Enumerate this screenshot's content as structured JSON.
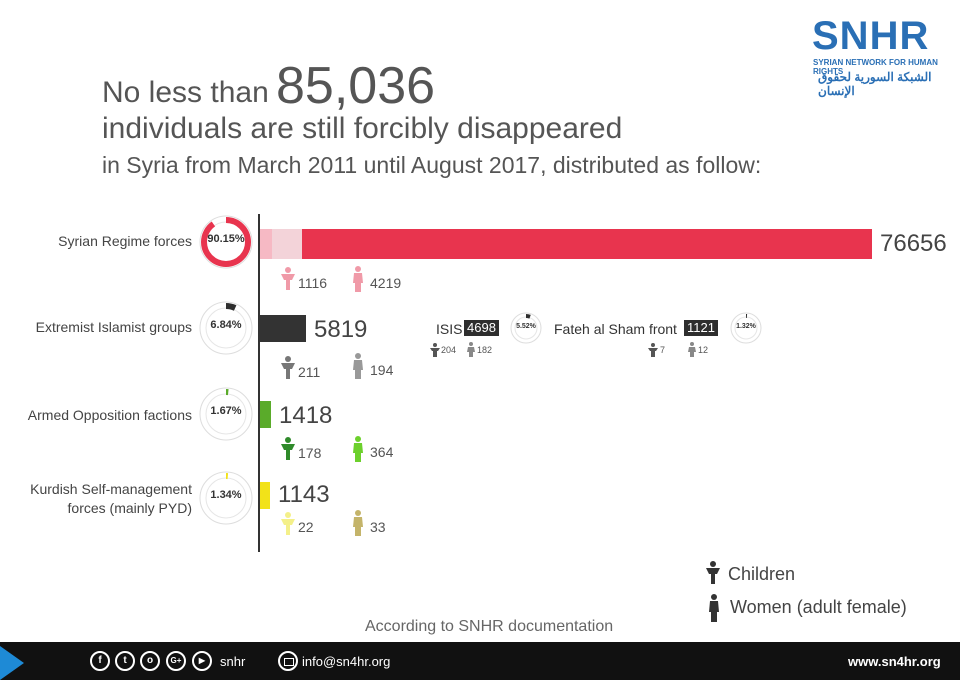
{
  "logo": {
    "name": "SNHR",
    "subtitle": "SYRIAN NETWORK FOR HUMAN RIGHTS",
    "arabic": "الشبكة السورية لحقوق الإنسان"
  },
  "headline": {
    "prefix": "No less than",
    "number": "85,036",
    "line2": "individuals are still forcibly disappeared",
    "line3": "in Syria from March 2011 until August 2017, distributed as follow:"
  },
  "chart_data": {
    "type": "bar",
    "title": "No less than 85,036 individuals are still forcibly disappeared",
    "total": 85036,
    "categories": [
      "Syrian Regime forces",
      "Extremist Islamist groups",
      "Armed Opposition factions",
      "Kurdish Self-management forces (mainly PYD)"
    ],
    "series": [
      {
        "name": "Total",
        "values": [
          76656,
          5819,
          1418,
          1143
        ]
      },
      {
        "name": "Children",
        "values": [
          1116,
          211,
          178,
          22
        ]
      },
      {
        "name": "Women (adult female)",
        "values": [
          4219,
          194,
          364,
          33
        ]
      }
    ],
    "percent_labels": [
      "90.15%",
      "6.84%",
      "1.67%",
      "1.34%"
    ],
    "colors": [
      "#e8344e",
      "#333333",
      "#5aab2a",
      "#f2e219"
    ],
    "subgroups": [
      {
        "name": "ISIS",
        "total": 4698,
        "percent_label": "5.52%",
        "children": 204,
        "women": 182
      },
      {
        "name": "Fateh al Sham front",
        "total": 1121,
        "percent_label": "1.32%",
        "children": 7,
        "women": 12
      }
    ],
    "legend": [
      "Children",
      "Women (adult female)"
    ],
    "note": "According to SNHR documentation"
  },
  "footer": {
    "icons": [
      "f",
      "t",
      "o",
      "G+",
      "▶"
    ],
    "handle": "snhr",
    "email": "info@sn4hr.org",
    "website": "www.sn4hr.org"
  }
}
